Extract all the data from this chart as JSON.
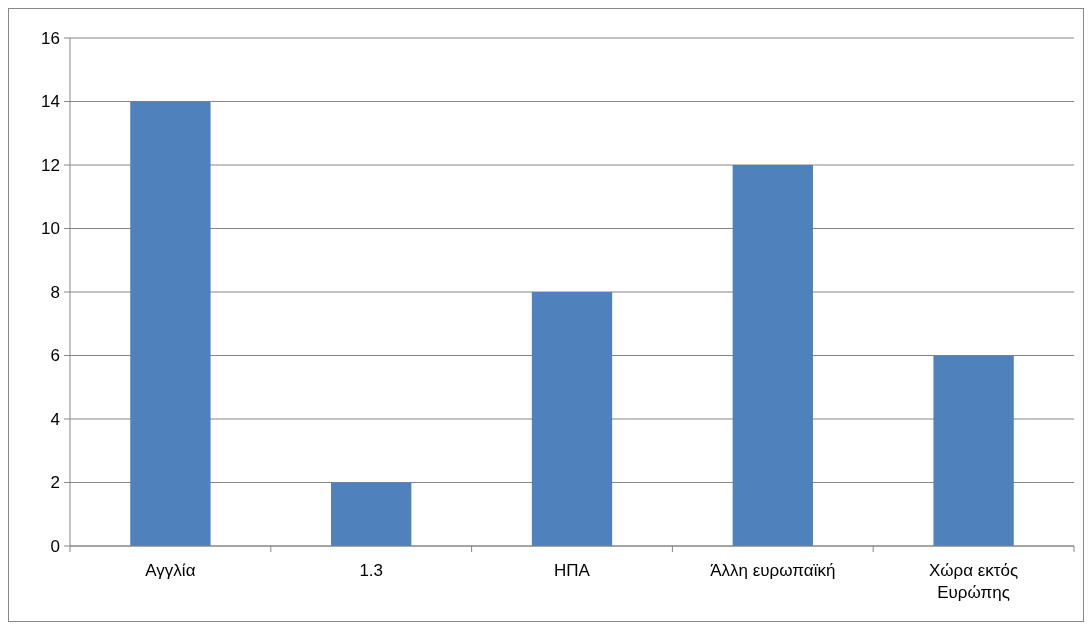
{
  "chart_data": {
    "type": "bar",
    "categories": [
      "Αγγλία",
      "1.3",
      "ΗΠΑ",
      "Άλλη ευρωπαϊκή",
      "Χώρα εκτός Ευρώπης"
    ],
    "values": [
      14,
      2,
      8,
      12,
      6
    ],
    "color": "#4f81bd",
    "ylim": [
      0,
      16
    ],
    "yticks": [
      0,
      2,
      4,
      6,
      8,
      10,
      12,
      14,
      16
    ],
    "grid": "y"
  }
}
